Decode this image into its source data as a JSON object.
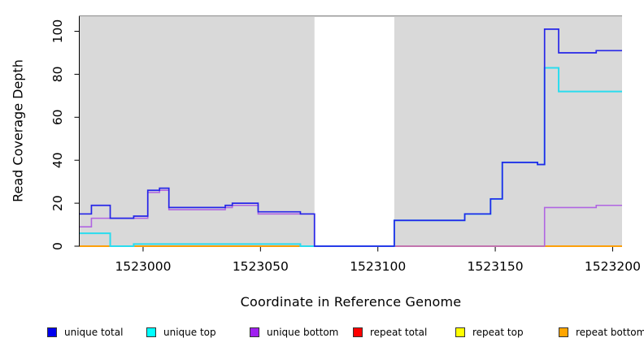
{
  "chart_data": {
    "type": "line",
    "subtype": "step-coverage",
    "title": "",
    "xlabel": "Coordinate in Reference Genome",
    "ylabel": "Read Coverage Depth",
    "xlim": [
      1522973,
      1523204
    ],
    "ylim": [
      0,
      107
    ],
    "x_ticks": [
      "1523000",
      "1523050",
      "1523100",
      "1523150",
      "1523200"
    ],
    "y_ticks": [
      "0",
      "20",
      "40",
      "60",
      "80",
      "100"
    ],
    "grid": false,
    "plot_bg": "#d9d9d9",
    "page_bg": "#ffffff",
    "axis_color": "#000000",
    "top_border_color": "#9a9a9a",
    "legend_position": "bottom",
    "legend_swatch_border": "#333333",
    "mask_region": {
      "x0": 1523073,
      "x1": 1523107,
      "color": "#ffffff"
    },
    "series": [
      {
        "name": "unique total",
        "legend_color": "#0000ee",
        "color": "#2626e8",
        "width": 1.7,
        "order": 6,
        "points": [
          [
            1522973,
            15
          ],
          [
            1522978,
            19
          ],
          [
            1522986,
            13
          ],
          [
            1522996,
            14
          ],
          [
            1523002,
            26
          ],
          [
            1523007,
            27
          ],
          [
            1523011,
            18
          ],
          [
            1523035,
            19
          ],
          [
            1523038,
            20
          ],
          [
            1523049,
            16
          ],
          [
            1523067,
            15
          ],
          [
            1523073,
            0
          ],
          [
            1523107,
            12
          ],
          [
            1523137,
            15
          ],
          [
            1523148,
            22
          ],
          [
            1523153,
            39
          ],
          [
            1523168,
            38
          ],
          [
            1523171,
            101
          ],
          [
            1523177,
            90
          ],
          [
            1523193,
            91
          ],
          [
            1523204,
            91
          ]
        ]
      },
      {
        "name": "unique top",
        "legend_color": "#00ffff",
        "color": "#2adcee",
        "width": 2.0,
        "order": 5,
        "points": [
          [
            1522973,
            6
          ],
          [
            1522986,
            0
          ],
          [
            1522996,
            1
          ],
          [
            1523067,
            0
          ],
          [
            1523107,
            12
          ],
          [
            1523137,
            15
          ],
          [
            1523148,
            22
          ],
          [
            1523153,
            39
          ],
          [
            1523168,
            38
          ],
          [
            1523171,
            83
          ],
          [
            1523177,
            72
          ],
          [
            1523204,
            72
          ]
        ]
      },
      {
        "name": "unique bottom",
        "legend_color": "#a020f0",
        "color": "#b065e2",
        "width": 1.6,
        "order": 4,
        "points": [
          [
            1522973,
            9
          ],
          [
            1522978,
            13
          ],
          [
            1523002,
            25
          ],
          [
            1523007,
            26
          ],
          [
            1523011,
            17
          ],
          [
            1523035,
            18
          ],
          [
            1523038,
            19
          ],
          [
            1523049,
            15
          ],
          [
            1523073,
            0
          ],
          [
            1523171,
            18
          ],
          [
            1523193,
            19
          ],
          [
            1523204,
            19
          ]
        ]
      },
      {
        "name": "repeat total",
        "legend_color": "#ff0000",
        "color": "#e63050",
        "width": 1.4,
        "order": 1,
        "points": [
          [
            1522973,
            0
          ],
          [
            1523204,
            0
          ]
        ]
      },
      {
        "name": "repeat top",
        "legend_color": "#ffff00",
        "color": "#f2e500",
        "width": 1.4,
        "order": 2,
        "points": [
          [
            1522973,
            0
          ],
          [
            1523204,
            0
          ]
        ]
      },
      {
        "name": "repeat bottom",
        "legend_color": "#ffa500",
        "color": "#ff9b00",
        "width": 1.8,
        "order": 3,
        "points": [
          [
            1522973,
            0
          ],
          [
            1523204,
            0
          ]
        ]
      }
    ]
  }
}
